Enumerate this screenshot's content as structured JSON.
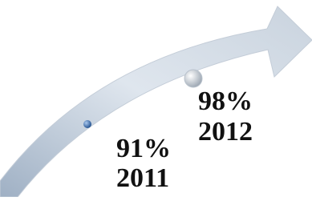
{
  "points": [
    {
      "label": "91%",
      "year": "2011"
    },
    {
      "label": "98%",
      "year": "2012"
    }
  ]
}
